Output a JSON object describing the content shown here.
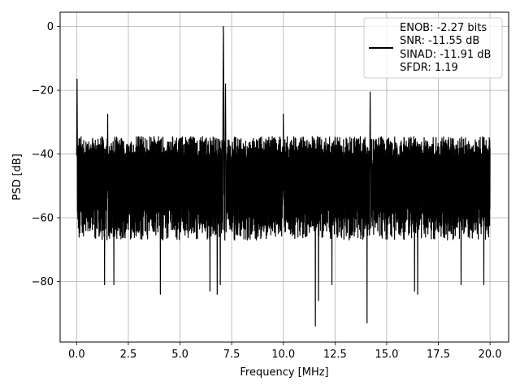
{
  "chart_data": {
    "type": "line",
    "xlabel": "Frequency [MHz]",
    "ylabel": "PSD [dB]",
    "xlim": [
      -0.8,
      20.9
    ],
    "ylim": [
      -99,
      4.5
    ],
    "xticks": [
      0.0,
      2.5,
      5.0,
      7.5,
      10.0,
      12.5,
      15.0,
      17.5,
      20.0
    ],
    "xtick_labels": [
      "0.0",
      "2.5",
      "5.0",
      "7.5",
      "10.0",
      "12.5",
      "15.0",
      "17.5",
      "20.0"
    ],
    "yticks": [
      0,
      -20,
      -40,
      -60,
      -80
    ],
    "ytick_labels": [
      "0",
      "−20",
      "−40",
      "−60",
      "−80"
    ],
    "grid": true,
    "series": [
      {
        "color": "#000000",
        "noise_band": {
          "x_start": 0.0,
          "x_end": 20.0,
          "upper_db": -34.5,
          "lower_db": -67.0
        },
        "peaks": [
          {
            "x": 0.02,
            "y": -16.5
          },
          {
            "x": 1.5,
            "y": -27.5
          },
          {
            "x": 7.1,
            "y": 0.0
          },
          {
            "x": 7.2,
            "y": -18.0
          },
          {
            "x": 10.0,
            "y": -27.5
          },
          {
            "x": 14.2,
            "y": -20.5
          }
        ],
        "dips": [
          {
            "x": 1.35,
            "y": -81
          },
          {
            "x": 1.8,
            "y": -81
          },
          {
            "x": 4.05,
            "y": -84
          },
          {
            "x": 6.45,
            "y": -83
          },
          {
            "x": 6.8,
            "y": -84
          },
          {
            "x": 6.95,
            "y": -81
          },
          {
            "x": 11.55,
            "y": -94
          },
          {
            "x": 11.7,
            "y": -86
          },
          {
            "x": 12.35,
            "y": -81
          },
          {
            "x": 14.05,
            "y": -93
          },
          {
            "x": 16.35,
            "y": -83
          },
          {
            "x": 16.5,
            "y": -84
          },
          {
            "x": 18.6,
            "y": -81
          },
          {
            "x": 19.7,
            "y": -81
          }
        ]
      }
    ],
    "legend": {
      "position": "top-right",
      "entries": [
        "ENOB: -2.27 bits",
        "SNR: -11.55 dB",
        "SINAD: -11.91 dB",
        "SFDR: 1.19"
      ]
    }
  }
}
